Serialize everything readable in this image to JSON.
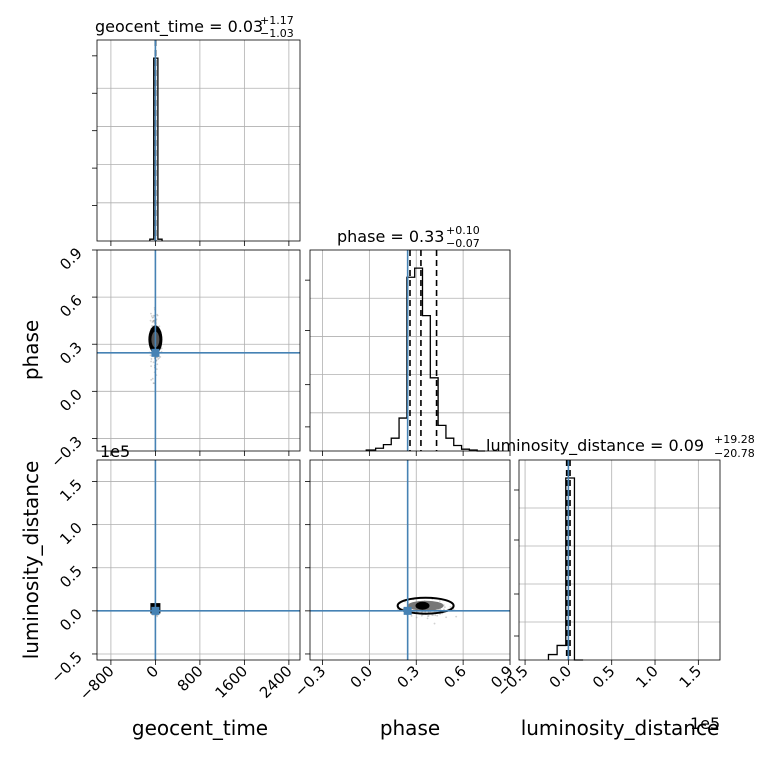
{
  "chart_data": {
    "type": "corner",
    "parameters": [
      "geocent_time",
      "phase",
      "luminosity_distance"
    ],
    "axis_labels": {
      "geocent_time": "geocent_time",
      "phase": "phase",
      "luminosity_distance": "luminosity_distance"
    },
    "titles": [
      {
        "param": "geocent_time",
        "name": "geocent_time",
        "median": "0.03",
        "plus": "+1.17",
        "minus": "−1.03"
      },
      {
        "param": "phase",
        "name": "phase",
        "median": "0.33",
        "plus": "+0.10",
        "minus": "−0.07"
      },
      {
        "param": "luminosity_distance",
        "name": "luminosity_distance",
        "median": "0.09",
        "plus": "+19.28",
        "minus": "−20.78"
      }
    ],
    "ranges": {
      "geocent_time": [
        -1050,
        2600
      ],
      "phase": [
        -0.38,
        0.9
      ],
      "luminosity_distance": [
        -57000,
        175000
      ]
    },
    "ticks": {
      "geocent_time": {
        "values": [
          -800,
          0,
          800,
          1600,
          2400
        ],
        "labels": [
          "−800",
          "0",
          "800",
          "1600",
          "2400"
        ]
      },
      "phase": {
        "values": [
          -0.3,
          0.0,
          0.3,
          0.6,
          0.9
        ],
        "labels": [
          "−0.3",
          "0.0",
          "0.3",
          "0.6",
          "0.9"
        ]
      },
      "luminosity_distance": {
        "values": [
          -50000,
          0,
          50000,
          100000,
          150000
        ],
        "labels": [
          "−0.5",
          "0.0",
          "0.5",
          "1.0",
          "1.5"
        ]
      }
    },
    "offset_text": {
      "luminosity_distance_y": "1e5",
      "luminosity_distance_x": "1e5"
    },
    "grid": true,
    "truth_color": "#4682b4",
    "truths": {
      "geocent_time": 0,
      "phase": 0.245,
      "luminosity_distance": 0
    },
    "quantile_lines": {
      "geocent_time": [
        -1.0,
        0.03,
        1.2
      ],
      "phase": [
        0.26,
        0.33,
        0.43
      ],
      "luminosity_distance": [
        -2000,
        9,
        1900
      ]
    },
    "hist_geocent_time": {
      "edges": [
        -100,
        -30,
        45,
        120
      ],
      "heights": [
        0.01,
        1.0,
        0.01
      ]
    },
    "hist_phase": {
      "edges": [
        -0.02,
        0.04,
        0.09,
        0.14,
        0.19,
        0.24,
        0.29,
        0.34,
        0.39,
        0.44,
        0.49,
        0.54,
        0.59,
        0.64,
        0.69,
        0.74
      ],
      "heights": [
        0.005,
        0.015,
        0.035,
        0.07,
        0.18,
        0.95,
        1.0,
        0.74,
        0.4,
        0.14,
        0.07,
        0.03,
        0.01,
        0.005,
        0.0
      ]
    },
    "hist_luminosity_distance": {
      "edges": [
        -23000,
        -13000,
        -3000,
        7000,
        17000
      ],
      "heights": [
        0.03,
        0.08,
        1.0,
        0.0
      ]
    }
  }
}
